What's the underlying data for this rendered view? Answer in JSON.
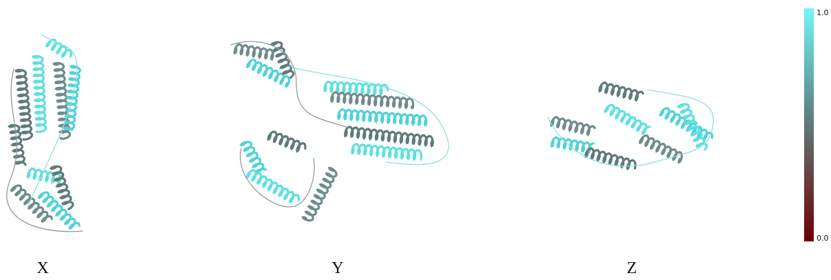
{
  "panels": [
    {
      "label": "X"
    },
    {
      "label": "Y"
    },
    {
      "label": "Z"
    }
  ],
  "colorbar": {
    "max_label": "1.0",
    "min_label": "0.0"
  }
}
